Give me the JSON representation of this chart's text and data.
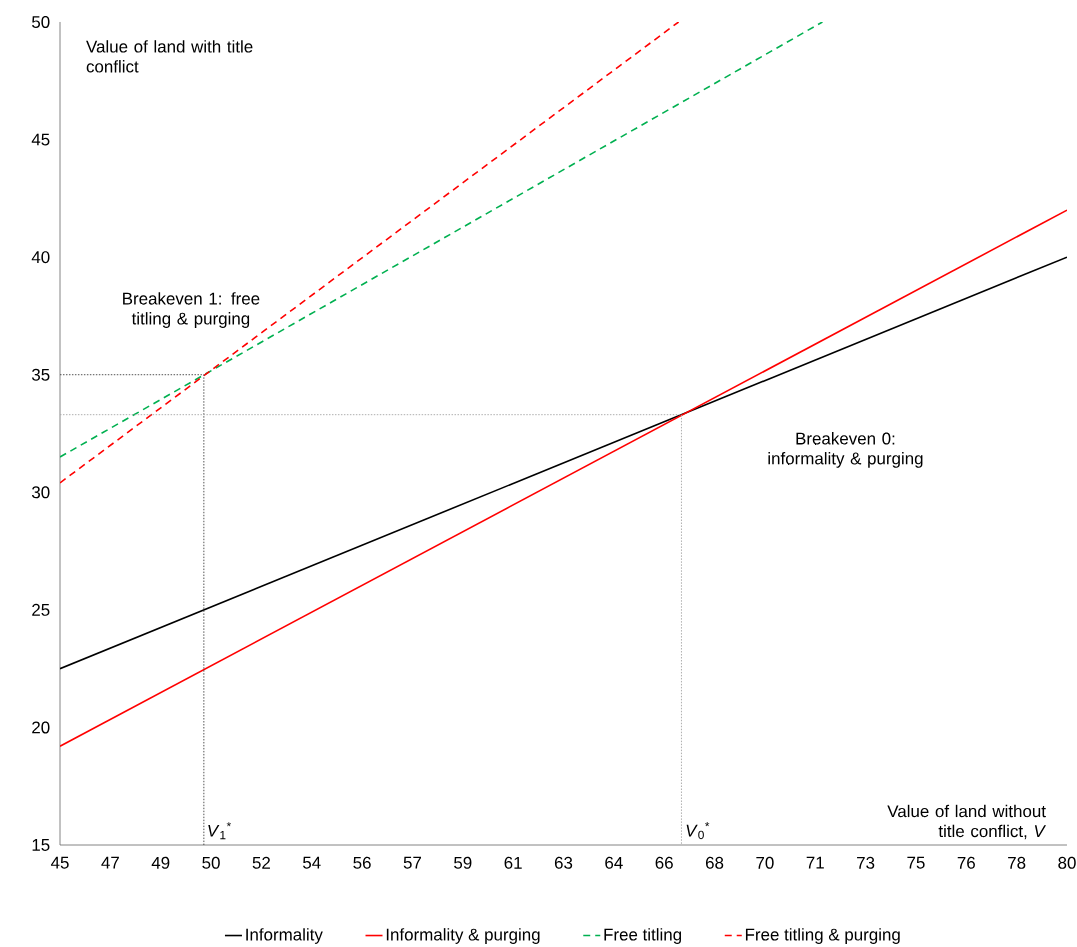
{
  "chart_data": {
    "type": "line",
    "xlabel": "Value of land without title conflict, *V*",
    "ylabel": "Value of land with title conflict",
    "xlim": [
      45,
      80
    ],
    "ylim": [
      15,
      50
    ],
    "xticks": [
      45,
      {
        "value": 46.75,
        "label": "47"
      },
      {
        "value": 48.5,
        "label": "49"
      },
      {
        "value": 50.25,
        "label": "50"
      },
      52,
      {
        "value": 53.75,
        "label": "54"
      },
      {
        "value": 55.5,
        "label": "56"
      },
      {
        "value": 57.25,
        "label": "57"
      },
      59,
      {
        "value": 60.75,
        "label": "61"
      },
      {
        "value": 62.5,
        "label": "63"
      },
      {
        "value": 64.25,
        "label": "64"
      },
      66,
      {
        "value": 67.75,
        "label": "68"
      },
      {
        "value": 69.5,
        "label": "70"
      },
      {
        "value": 71.25,
        "label": "71"
      },
      73,
      {
        "value": 74.75,
        "label": "75"
      },
      {
        "value": 76.5,
        "label": "76"
      },
      {
        "value": 78.25,
        "label": "78"
      },
      80
    ],
    "yticks": [
      15,
      20,
      25,
      30,
      35,
      40,
      45,
      50
    ],
    "grid": false,
    "legend": "bottom",
    "marker": "none",
    "series": [
      {
        "name": "Informality",
        "color": "#000000",
        "line_style": "solid",
        "x": [
          45,
          80
        ],
        "values": [
          22.5,
          40
        ]
      },
      {
        "name": "Informality & purging",
        "color": "#ff0000",
        "line_style": "solid",
        "x": [
          45,
          80
        ],
        "values": [
          19.2,
          42
        ]
      },
      {
        "name": "Free titling",
        "color": "#00b050",
        "line_style": "dashed",
        "x": [
          45,
          71.5
        ],
        "values": [
          31.5,
          50
        ]
      },
      {
        "name": "Free titling & purging",
        "color": "#ff0000",
        "line_style": "dashed",
        "x": [
          45,
          66.5
        ],
        "values": [
          30.4,
          50
        ]
      },
      {
        "color": "#404040",
        "line_style": "dotted",
        "x": [
          45,
          50,
          50
        ],
        "values": [
          35,
          35,
          15
        ]
      },
      {
        "color": "#a6a6a6",
        "line_style": "dotted",
        "x": [
          45,
          66.6,
          66.6
        ],
        "values": [
          33.3,
          33.3,
          15
        ]
      }
    ],
    "annotations": [
      "Breakeven 1: free titling & purging",
      "Breakeven 0: informality & purging",
      "*V*$_{1}$$^{*}$",
      "*V*$_{0}$$^{*}$"
    ]
  }
}
